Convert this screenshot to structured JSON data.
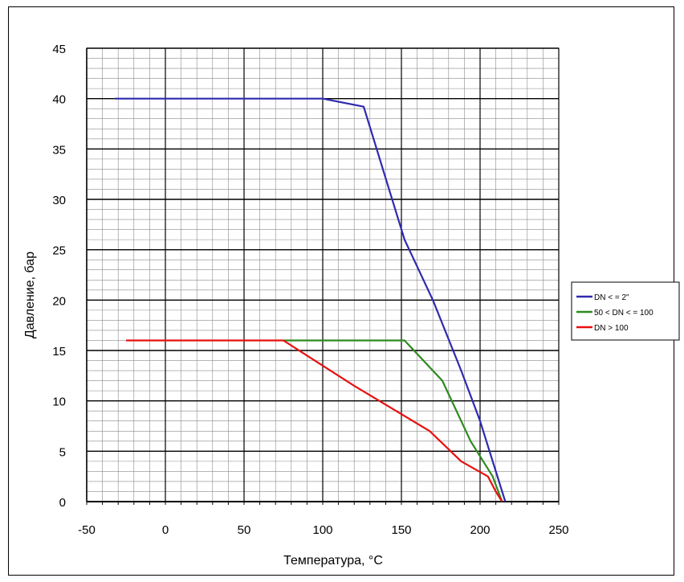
{
  "chart_data": {
    "type": "line",
    "title": "",
    "xlabel": "Температура, °C",
    "ylabel": "Давление, бар",
    "xlim": [
      -50,
      250
    ],
    "ylim": [
      0,
      45
    ],
    "x_major_step": 50,
    "x_minor_step": 10,
    "y_major_step": 5,
    "y_minor_step": 1,
    "grid": true,
    "legend_position": "right",
    "series": [
      {
        "name": "DN < = 2\"",
        "color": "#2e2ab0",
        "points": [
          [
            -32,
            40
          ],
          [
            100,
            40
          ],
          [
            126,
            39.2
          ],
          [
            152,
            26
          ],
          [
            170,
            20
          ],
          [
            188,
            13
          ],
          [
            200,
            8
          ],
          [
            216,
            0
          ]
        ]
      },
      {
        "name": "50 < DN < = 100",
        "color": "#2e8a1e",
        "points": [
          [
            75,
            16
          ],
          [
            152,
            16
          ],
          [
            176,
            12
          ],
          [
            194,
            6
          ],
          [
            208,
            2.5
          ],
          [
            214,
            0
          ]
        ]
      },
      {
        "name": "DN > 100",
        "color": "#e81010",
        "points": [
          [
            -25,
            16
          ],
          [
            75,
            16
          ],
          [
            120,
            11.5
          ],
          [
            168,
            7
          ],
          [
            188,
            4
          ],
          [
            205,
            2.5
          ],
          [
            210,
            1
          ],
          [
            214,
            0
          ]
        ]
      }
    ]
  }
}
